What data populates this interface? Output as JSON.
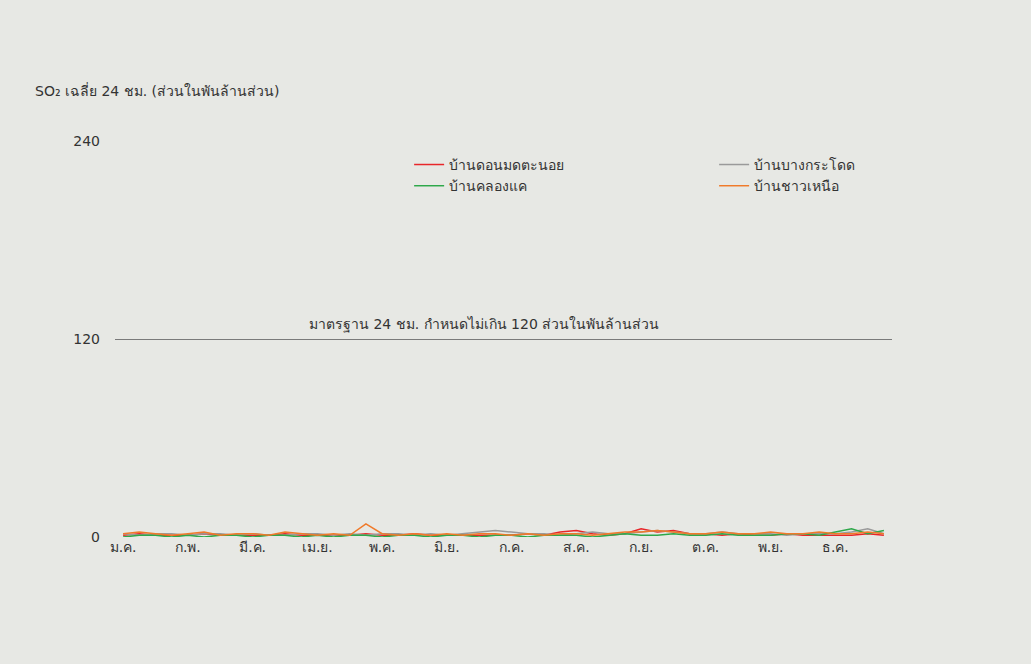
{
  "chart_data": {
    "type": "line",
    "y_label": "SO₂ เฉลี่ย 24 ชม. (ส่วนในพันล้านส่วน)",
    "annotations": [
      {
        "text": "มาตรฐาน 24 ชม. กำหนดไม่เกิน 120 ส่วนในพันล้านส่วน",
        "y": 120
      }
    ],
    "categories": [
      "ม.ค.",
      null,
      null,
      null,
      "ก.พ.",
      null,
      null,
      null,
      "มี.ค.",
      null,
      null,
      null,
      "เม.ย.",
      null,
      null,
      null,
      "พ.ค.",
      null,
      null,
      null,
      "มิ.ย.",
      null,
      null,
      null,
      "ก.ค.",
      null,
      null,
      null,
      "ส.ค.",
      null,
      null,
      null,
      "ก.ย.",
      null,
      null,
      null,
      "ต.ค.",
      null,
      null,
      null,
      "พ.ย.",
      null,
      null,
      null,
      "ธ.ค.",
      null,
      null,
      null
    ],
    "series": [
      {
        "name": "บ้านดอนมดตะนอย",
        "color": "#e8262a",
        "values": [
          1,
          2,
          1,
          1,
          1,
          2,
          1,
          1,
          1,
          1,
          2,
          1,
          1,
          1,
          1,
          2,
          1,
          1,
          2,
          1,
          1,
          1,
          1,
          1,
          1,
          2,
          1,
          3,
          4,
          2,
          1,
          2,
          5,
          3,
          4,
          2,
          2,
          1,
          2,
          1,
          1,
          2,
          1,
          1,
          1,
          1,
          2,
          1
        ]
      },
      {
        "name": "บ้านบางกระโดด",
        "color": "#9a9a9a",
        "values": [
          2,
          1,
          2,
          2,
          1,
          2,
          2,
          1,
          2,
          1,
          1,
          2,
          2,
          1,
          2,
          1,
          2,
          2,
          1,
          2,
          1,
          2,
          3,
          4,
          3,
          2,
          2,
          1,
          2,
          3,
          2,
          2,
          3,
          4,
          3,
          2,
          2,
          3,
          2,
          2,
          2,
          1,
          2,
          2,
          2,
          3,
          5,
          2
        ]
      },
      {
        "name": "บ้านคลองแค",
        "color": "#2ea84a",
        "values": [
          0,
          1,
          1,
          0,
          1,
          0,
          1,
          1,
          0,
          1,
          1,
          0,
          1,
          0,
          1,
          1,
          0,
          1,
          1,
          0,
          1,
          1,
          0,
          1,
          1,
          0,
          1,
          1,
          1,
          0,
          1,
          2,
          1,
          1,
          2,
          1,
          1,
          2,
          1,
          1,
          1,
          2,
          2,
          1,
          3,
          5,
          2,
          4
        ]
      },
      {
        "name": "บ้านชาวเหนือ",
        "color": "#f07a2a",
        "values": [
          2,
          3,
          2,
          1,
          2,
          3,
          1,
          2,
          2,
          1,
          3,
          2,
          1,
          2,
          1,
          8,
          2,
          1,
          2,
          1,
          2,
          1,
          2,
          2,
          1,
          2,
          1,
          2,
          2,
          1,
          2,
          3,
          3,
          4,
          3,
          2,
          2,
          3,
          2,
          2,
          3,
          2,
          2,
          3,
          2,
          2,
          3,
          2
        ]
      }
    ],
    "ylim": [
      0,
      240
    ],
    "yticks": [
      0,
      120,
      240
    ],
    "grid": true,
    "legend": "top"
  }
}
